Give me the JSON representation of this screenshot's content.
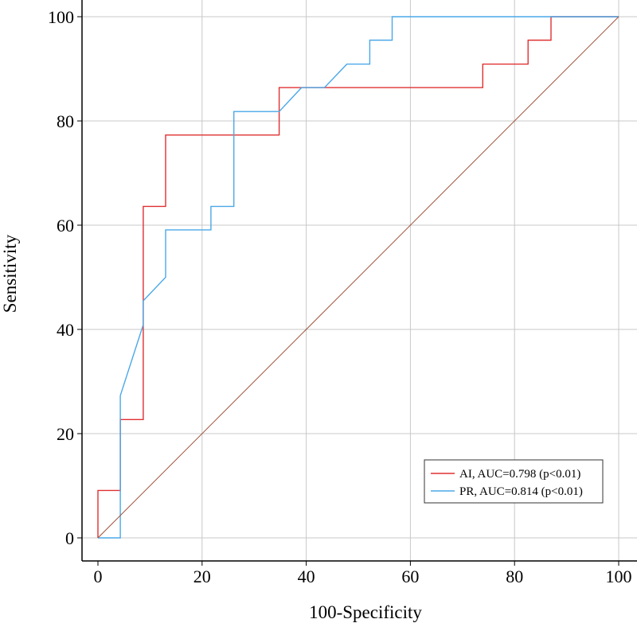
{
  "chart_data": {
    "type": "line",
    "title": "",
    "xlabel": "100-Specificity",
    "ylabel": "Sensitivity",
    "xlim": [
      0,
      100
    ],
    "ylim": [
      0,
      100
    ],
    "xticks": [
      0,
      20,
      40,
      60,
      80,
      100
    ],
    "yticks": [
      0,
      20,
      40,
      60,
      80,
      100
    ],
    "grid": true,
    "legend_position": "bottom-right",
    "series": [
      {
        "name": "AI, AUC=0.798 (p<0.01)",
        "color": "#e03030",
        "points": [
          [
            0,
            0
          ],
          [
            0,
            9.1
          ],
          [
            4.3,
            9.1
          ],
          [
            4.3,
            22.7
          ],
          [
            8.7,
            22.7
          ],
          [
            8.7,
            40.9
          ],
          [
            8.7,
            63.6
          ],
          [
            13.0,
            63.6
          ],
          [
            13.0,
            77.3
          ],
          [
            34.8,
            77.3
          ],
          [
            34.8,
            86.4
          ],
          [
            73.9,
            86.4
          ],
          [
            73.9,
            90.9
          ],
          [
            82.6,
            90.9
          ],
          [
            82.6,
            95.5
          ],
          [
            87.0,
            95.5
          ],
          [
            87.0,
            100
          ],
          [
            100,
            100
          ]
        ]
      },
      {
        "name": "PR, AUC=0.814 (p<0.01)",
        "color": "#4aa8e8",
        "points": [
          [
            0,
            0
          ],
          [
            4.3,
            0
          ],
          [
            4.3,
            27.3
          ],
          [
            8.7,
            40.9
          ],
          [
            8.7,
            45.5
          ],
          [
            13.0,
            50.0
          ],
          [
            13.0,
            59.1
          ],
          [
            21.7,
            59.1
          ],
          [
            21.7,
            63.6
          ],
          [
            26.1,
            63.6
          ],
          [
            26.1,
            81.8
          ],
          [
            34.8,
            81.8
          ],
          [
            39.1,
            86.4
          ],
          [
            43.5,
            86.4
          ],
          [
            47.8,
            90.9
          ],
          [
            52.2,
            90.9
          ],
          [
            52.2,
            95.5
          ],
          [
            56.5,
            95.5
          ],
          [
            56.5,
            100
          ],
          [
            100,
            100
          ]
        ]
      },
      {
        "name": "reference",
        "color": "#a0523a",
        "points": [
          [
            0,
            0
          ],
          [
            100,
            100
          ]
        ]
      }
    ]
  }
}
